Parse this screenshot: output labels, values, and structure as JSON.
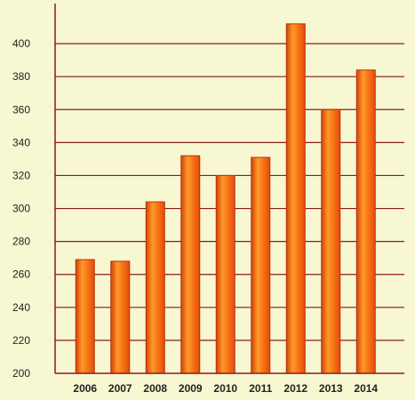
{
  "chart_data": {
    "type": "bar",
    "title": "",
    "xlabel": "",
    "ylabel": "",
    "categories": [
      "2006",
      "2007",
      "2008",
      "2009",
      "2010",
      "2011",
      "2012",
      "2013",
      "2014"
    ],
    "values": [
      269,
      268,
      304,
      332,
      320,
      331,
      412,
      360,
      384
    ],
    "ylim": [
      200,
      420
    ],
    "yticks": [
      200,
      220,
      240,
      260,
      280,
      300,
      320,
      340,
      360,
      380,
      400
    ],
    "grid": true,
    "colors": {
      "background": "#f7f7d2",
      "bar_fill": "#f25a0c",
      "bar_highlight": "#ff9a2a",
      "bar_border": "#b8320a",
      "grid": "#8b1a1a",
      "axis": "#8b1a1a"
    }
  }
}
